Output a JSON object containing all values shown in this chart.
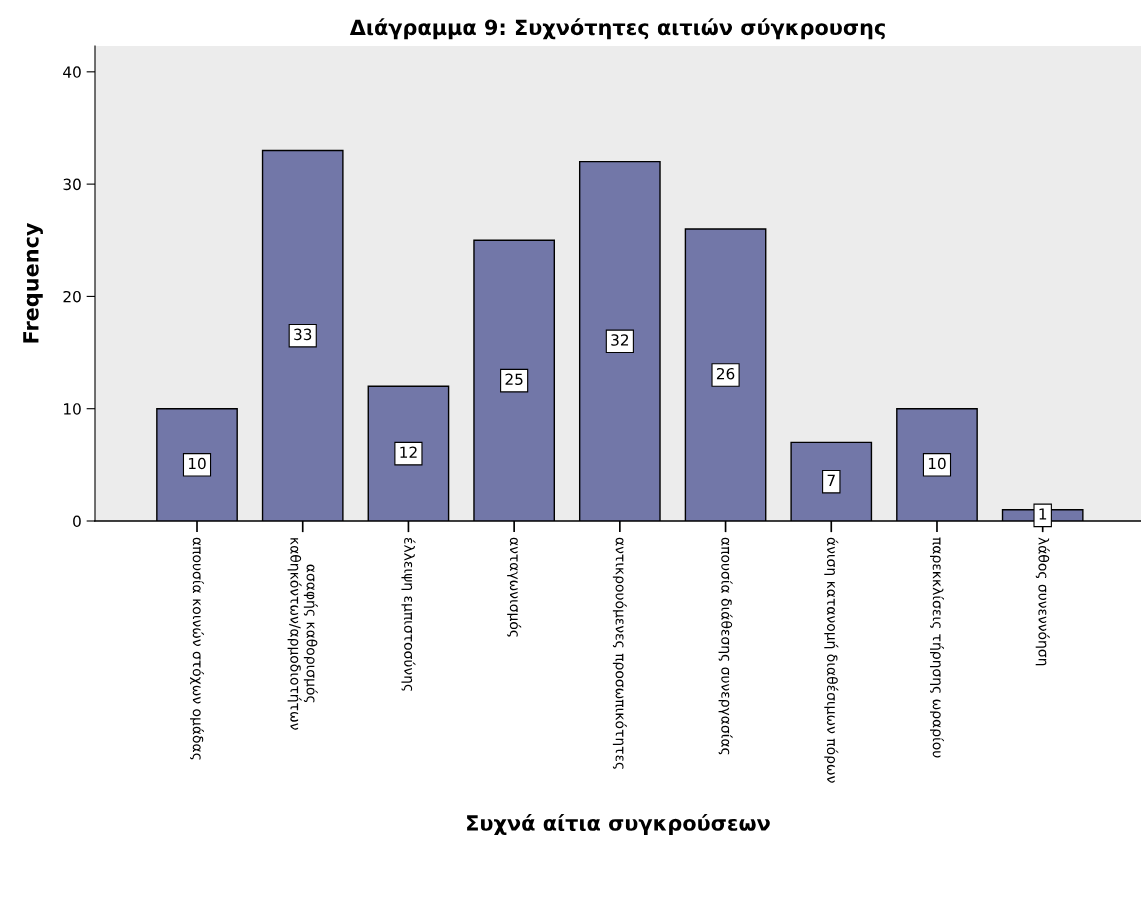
{
  "chart_data": {
    "type": "bar",
    "title": "Διάγραμμα 9: Συχνότητες αιτιών σύγκρουσης",
    "xlabel": "Συχνά αίτια συγκρούσεων",
    "ylabel": "Frequency",
    "categories": [
      "απουσία κοινών στόχων ομάδας",
      "ασαφής καθορισμός\nκαθηκόντων/αρμοδιοτήτων",
      "έλλειψη εμπιστοσύνης",
      "ανταγωνισμός",
      "αντικρουόμενες προσωπικότητες",
      "απουσία διάθεσης συνεργασίας",
      "άνιση κατανομή διαθέσιμων πόρων",
      "παρεκκλίσεις τήρησης ωραρίου",
      "λάθος συνεννόηση"
    ],
    "values": [
      10,
      33,
      12,
      25,
      32,
      26,
      7,
      10,
      1
    ],
    "color": "#7277a8",
    "data_labels": true,
    "ylim": [
      0,
      42.3
    ],
    "yticks": [
      0,
      10,
      20,
      30,
      40
    ],
    "grid": false,
    "legend": false
  }
}
